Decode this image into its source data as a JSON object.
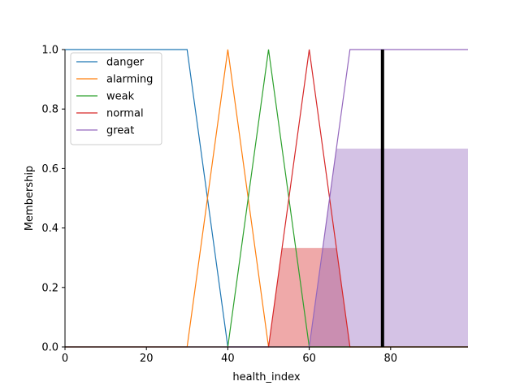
{
  "chart_data": {
    "type": "line",
    "title": "",
    "xlabel": "health_index",
    "ylabel": "Membership",
    "xlim": [
      0,
      99
    ],
    "ylim": [
      0,
      1.0
    ],
    "xticks": [
      0,
      20,
      40,
      60,
      80
    ],
    "xtick_labels": [
      "0",
      "20",
      "40",
      "60",
      "80"
    ],
    "yticks": [
      0.0,
      0.2,
      0.4,
      0.6,
      0.8,
      1.0
    ],
    "ytick_labels": [
      "0.0",
      "0.2",
      "0.4",
      "0.6",
      "0.8",
      "1.0"
    ],
    "grid": false,
    "legend_position": "top-left",
    "series": [
      {
        "name": "danger",
        "color": "#1f77b4",
        "x": [
          0,
          30,
          40,
          99
        ],
        "y": [
          1,
          1,
          0,
          0
        ]
      },
      {
        "name": "alarming",
        "color": "#ff7f0e",
        "x": [
          0,
          30,
          40,
          50,
          99
        ],
        "y": [
          0,
          0,
          1,
          0,
          0
        ]
      },
      {
        "name": "weak",
        "color": "#2ca02c",
        "x": [
          0,
          40,
          50,
          60,
          99
        ],
        "y": [
          0,
          0,
          1,
          0,
          0
        ]
      },
      {
        "name": "normal",
        "color": "#d62728",
        "x": [
          0,
          50,
          60,
          70,
          99
        ],
        "y": [
          0,
          0,
          1,
          0,
          0
        ]
      },
      {
        "name": "great",
        "color": "#9467bd",
        "x": [
          0,
          60,
          70,
          99
        ],
        "y": [
          0,
          0,
          1,
          1
        ]
      }
    ],
    "activations": [
      {
        "series": "normal",
        "color": "#d62728",
        "x": [
          50,
          53.3,
          66.7,
          70
        ],
        "y": [
          0,
          0.333,
          0.333,
          0
        ]
      },
      {
        "series": "great",
        "color": "#9467bd",
        "x": [
          60,
          66.7,
          99,
          99
        ],
        "y": [
          0,
          0.667,
          0.667,
          0
        ]
      }
    ],
    "output_marker": {
      "x": 78,
      "color": "#000000"
    }
  }
}
